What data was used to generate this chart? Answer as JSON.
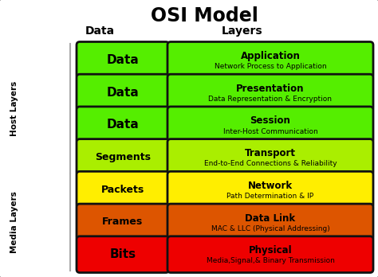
{
  "title": "OSI Model",
  "col_header_left": "Data",
  "col_header_right": "Layers",
  "layers": [
    {
      "data_unit": "Data",
      "layer_name": "Application",
      "layer_desc": "Network Process to Application",
      "color": "#55ee00",
      "text_color": "#000000"
    },
    {
      "data_unit": "Data",
      "layer_name": "Presentation",
      "layer_desc": "Data Representation & Encryption",
      "color": "#55ee00",
      "text_color": "#000000"
    },
    {
      "data_unit": "Data",
      "layer_name": "Session",
      "layer_desc": "Inter-Host Communication",
      "color": "#55ee00",
      "text_color": "#000000"
    },
    {
      "data_unit": "Segments",
      "layer_name": "Transport",
      "layer_desc": "End-to-End Connections & Reliability",
      "color": "#aaee00",
      "text_color": "#000000"
    },
    {
      "data_unit": "Packets",
      "layer_name": "Network",
      "layer_desc": "Path Determination & IP",
      "color": "#ffee00",
      "text_color": "#000000"
    },
    {
      "data_unit": "Frames",
      "layer_name": "Data Link",
      "layer_desc": "MAC & LLC (Physical Addressing)",
      "color": "#dd5500",
      "text_color": "#000000"
    },
    {
      "data_unit": "Bits",
      "layer_name": "Physical",
      "layer_desc": "Media,Signal,& Binary Transmission",
      "color": "#ee0000",
      "text_color": "#000000"
    }
  ],
  "host_label": "Host Layers",
  "media_label": "Media Layers",
  "host_count": 4,
  "media_count": 3,
  "bg_color": "#ffffff"
}
